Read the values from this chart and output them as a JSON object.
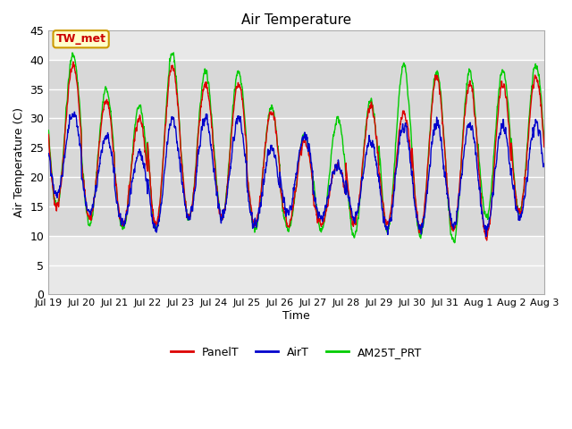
{
  "title": "Air Temperature",
  "xlabel": "Time",
  "ylabel": "Air Temperature (C)",
  "ylim": [
    0,
    45
  ],
  "yticks": [
    0,
    5,
    10,
    15,
    20,
    25,
    30,
    35,
    40,
    45
  ],
  "xtick_labels": [
    "Jul 19",
    "Jul 20",
    "Jul 21",
    "Jul 22",
    "Jul 23",
    "Jul 24",
    "Jul 25",
    "Jul 26",
    "Jul 27",
    "Jul 28",
    "Jul 29",
    "Jul 30",
    "Jul 31",
    "Aug 1",
    "Aug 2",
    "Aug 3"
  ],
  "annotation_text": "TW_met",
  "annotation_color": "#cc0000",
  "annotation_bg": "#ffffcc",
  "annotation_border": "#cc9900",
  "legend_entries": [
    "PanelT",
    "AirT",
    "AM25T_PRT"
  ],
  "legend_colors": [
    "#dd0000",
    "#0000cc",
    "#00cc00"
  ],
  "panel_color": "#dd0000",
  "air_color": "#0000cc",
  "am25t_color": "#00cc00",
  "line_width": 1.0,
  "bg_color": "#ffffff",
  "plot_bg_outer": "#e8e8e8",
  "plot_bg_inner": "#d8d8d8",
  "grid_color": "#ffffff",
  "num_days": 15,
  "samples_per_day": 144,
  "inner_band_low": 10,
  "inner_band_high": 40,
  "figsize": [
    6.4,
    4.8
  ],
  "dpi": 100
}
